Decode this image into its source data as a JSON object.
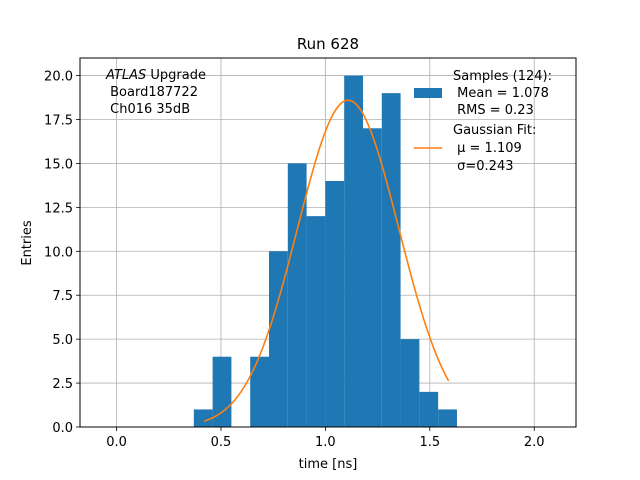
{
  "chart_data": {
    "type": "bar",
    "title": "Run 628",
    "xlabel": "time [ns]",
    "ylabel": "Entries",
    "xlim": [
      -0.175,
      2.2
    ],
    "ylim": [
      0,
      21
    ],
    "grid": true,
    "x_ticks": [
      "0.0",
      "0.5",
      "1.0",
      "1.5",
      "2.0"
    ],
    "x_tick_values": [
      0.0,
      0.5,
      1.0,
      1.5,
      2.0
    ],
    "y_ticks": [
      "0.0",
      "2.5",
      "5.0",
      "7.5",
      "10.0",
      "12.5",
      "15.0",
      "17.5",
      "20.0"
    ],
    "y_tick_values": [
      0,
      2.5,
      5,
      7.5,
      10,
      12.5,
      15,
      17.5,
      20
    ],
    "histogram": {
      "bin_width": 0.09,
      "color": "#1f77b4",
      "bins": [
        {
          "x0": 0.37,
          "count": 1
        },
        {
          "x0": 0.46,
          "count": 4
        },
        {
          "x0": 0.55,
          "count": 0
        },
        {
          "x0": 0.64,
          "count": 4
        },
        {
          "x0": 0.73,
          "count": 10
        },
        {
          "x0": 0.82,
          "count": 15
        },
        {
          "x0": 0.91,
          "count": 12
        },
        {
          "x0": 1.0,
          "count": 14
        },
        {
          "x0": 1.09,
          "count": 20
        },
        {
          "x0": 1.18,
          "count": 17
        },
        {
          "x0": 1.27,
          "count": 19
        },
        {
          "x0": 1.36,
          "count": 5
        },
        {
          "x0": 1.45,
          "count": 2
        },
        {
          "x0": 1.54,
          "count": 1
        }
      ]
    },
    "fit": {
      "mu": 1.109,
      "sigma": 0.243,
      "amplitude": 18.6,
      "x_range": [
        0.42,
        1.59
      ],
      "color": "#ff7f0e"
    },
    "annotation_lines": [
      {
        "italic": "ATLAS",
        "rest": " Upgrade"
      },
      {
        "italic": "",
        "rest": " Board187722"
      },
      {
        "italic": "",
        "rest": " Ch016 35dB"
      }
    ],
    "legend": {
      "placement": "top-right",
      "samples_lines": [
        "Samples (124):",
        " Mean = 1.078",
        " RMS = 0.23"
      ],
      "fit_lines": [
        "Gaussian Fit:",
        " μ = 1.109",
        " σ=0.243"
      ]
    }
  }
}
